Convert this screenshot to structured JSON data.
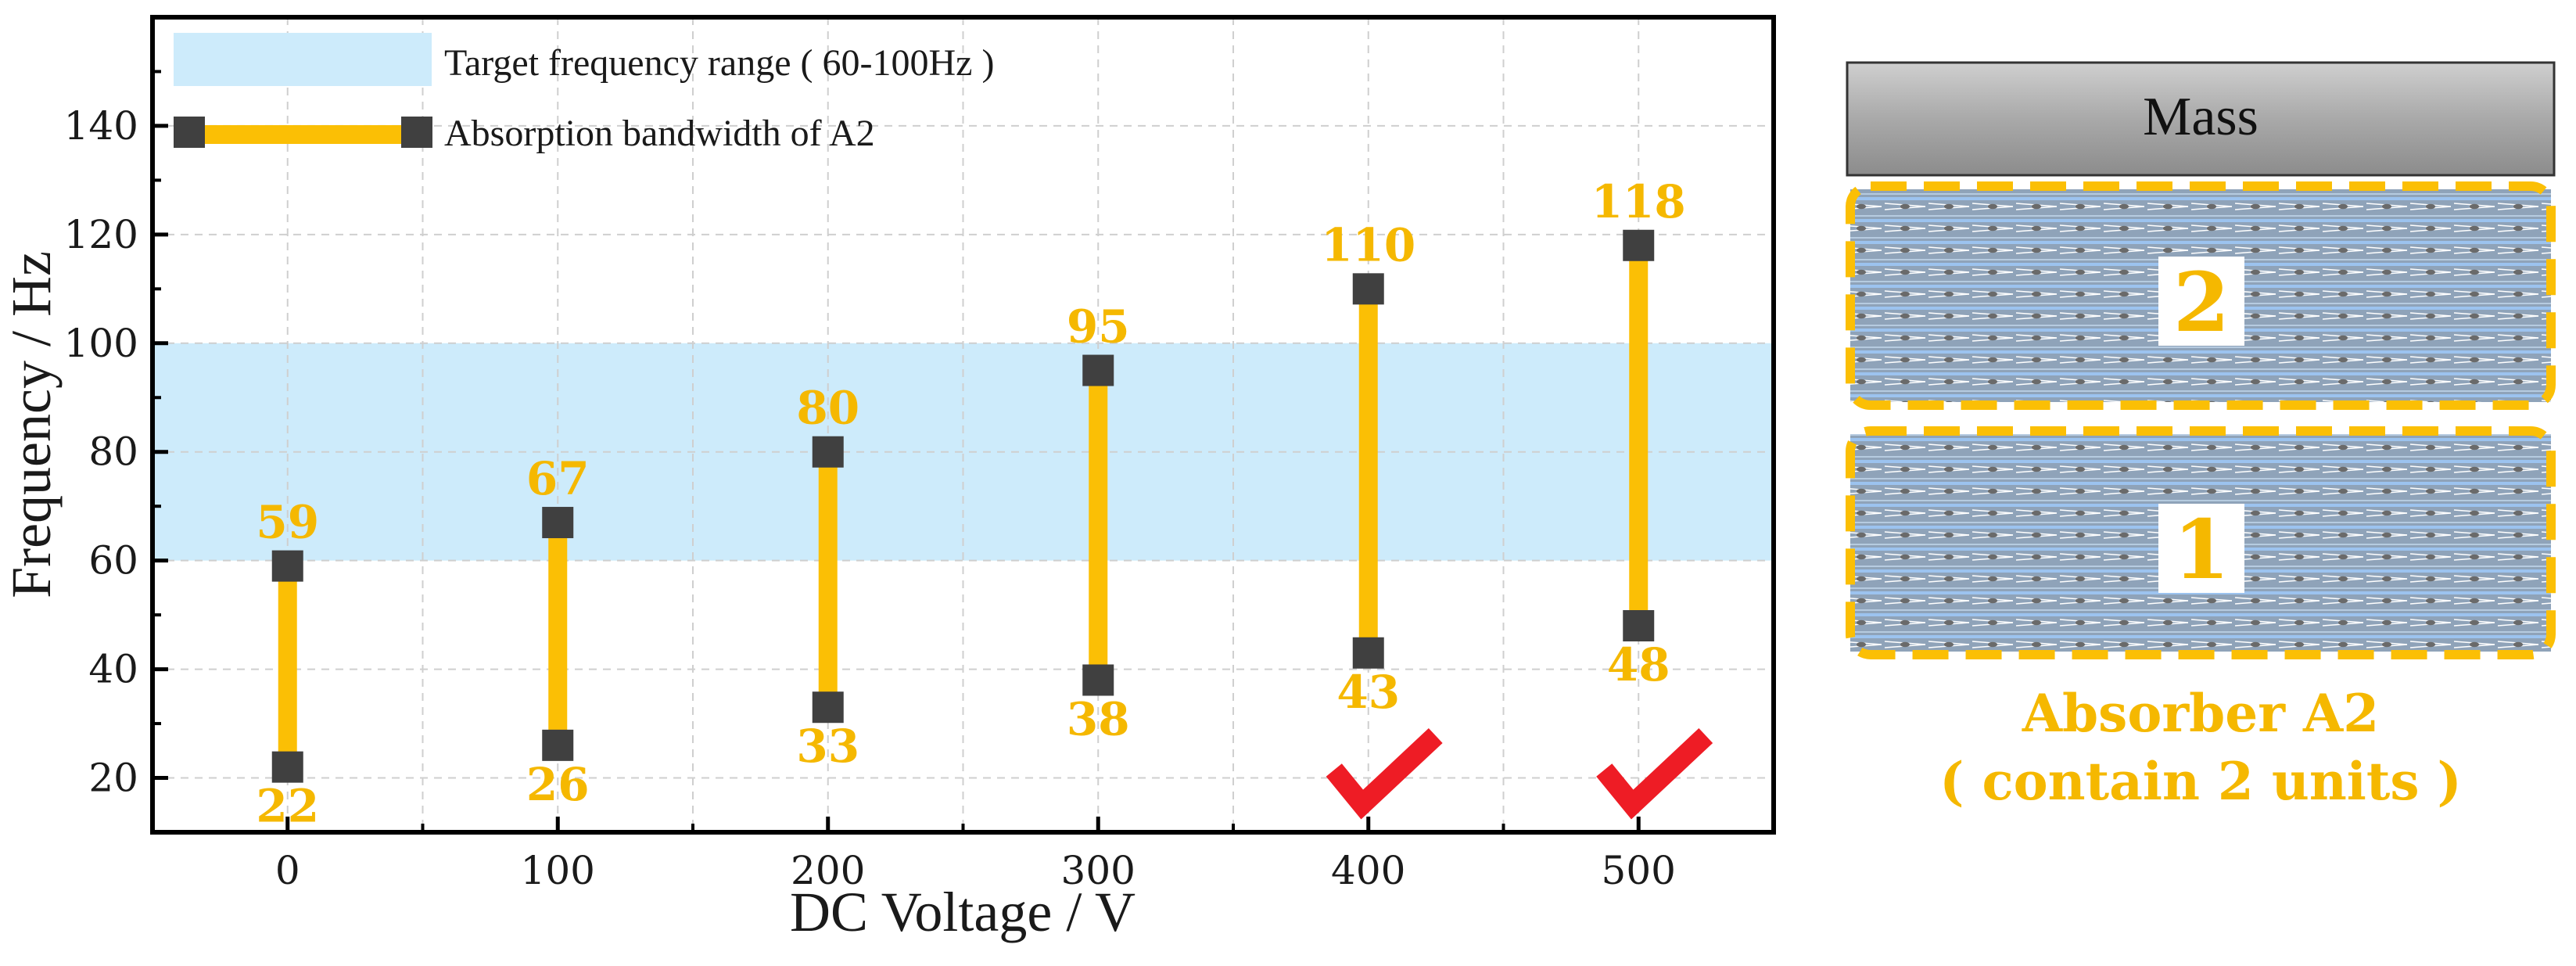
{
  "chart_data": {
    "type": "range-bar",
    "xlabel": "DC Voltage / V",
    "ylabel": "Frequency / Hz",
    "xlim": [
      -50,
      550
    ],
    "ylim": [
      10,
      160
    ],
    "x_ticks": [
      0,
      100,
      200,
      300,
      400,
      500
    ],
    "y_ticks": [
      20,
      40,
      60,
      80,
      100,
      120,
      140
    ],
    "grid": true,
    "legend": {
      "position": "top-left",
      "entries": [
        {
          "label": "Target frequency range ( 60-100Hz )",
          "kind": "band"
        },
        {
          "label": "Absorption bandwidth of A2",
          "kind": "range"
        }
      ]
    },
    "target_band": {
      "low": 60,
      "high": 100
    },
    "series": [
      {
        "name": "Absorption bandwidth of A2",
        "points": [
          {
            "x": 0,
            "low": 22,
            "high": 59,
            "meets_target": false
          },
          {
            "x": 100,
            "low": 26,
            "high": 67,
            "meets_target": false
          },
          {
            "x": 200,
            "low": 33,
            "high": 80,
            "meets_target": false
          },
          {
            "x": 300,
            "low": 38,
            "high": 95,
            "meets_target": false
          },
          {
            "x": 400,
            "low": 43,
            "high": 110,
            "meets_target": true
          },
          {
            "x": 500,
            "low": 48,
            "high": 118,
            "meets_target": true
          }
        ]
      }
    ]
  },
  "colors": {
    "band": "#cdebfb",
    "bar": "#fbbf05",
    "marker": "#404040",
    "label": "#f5b800",
    "check": "#ee1c25",
    "frame": "#000000",
    "grid": "#cfcfcf",
    "mass_fill": "#a0a0a0",
    "unit_fill": "#8ea2b8"
  },
  "diagram": {
    "mass_label": "Mass",
    "unit_top_label": "2",
    "unit_bottom_label": "1",
    "absorber_title": "Absorber A2",
    "absorber_subtitle": "( contain 2 units )"
  }
}
